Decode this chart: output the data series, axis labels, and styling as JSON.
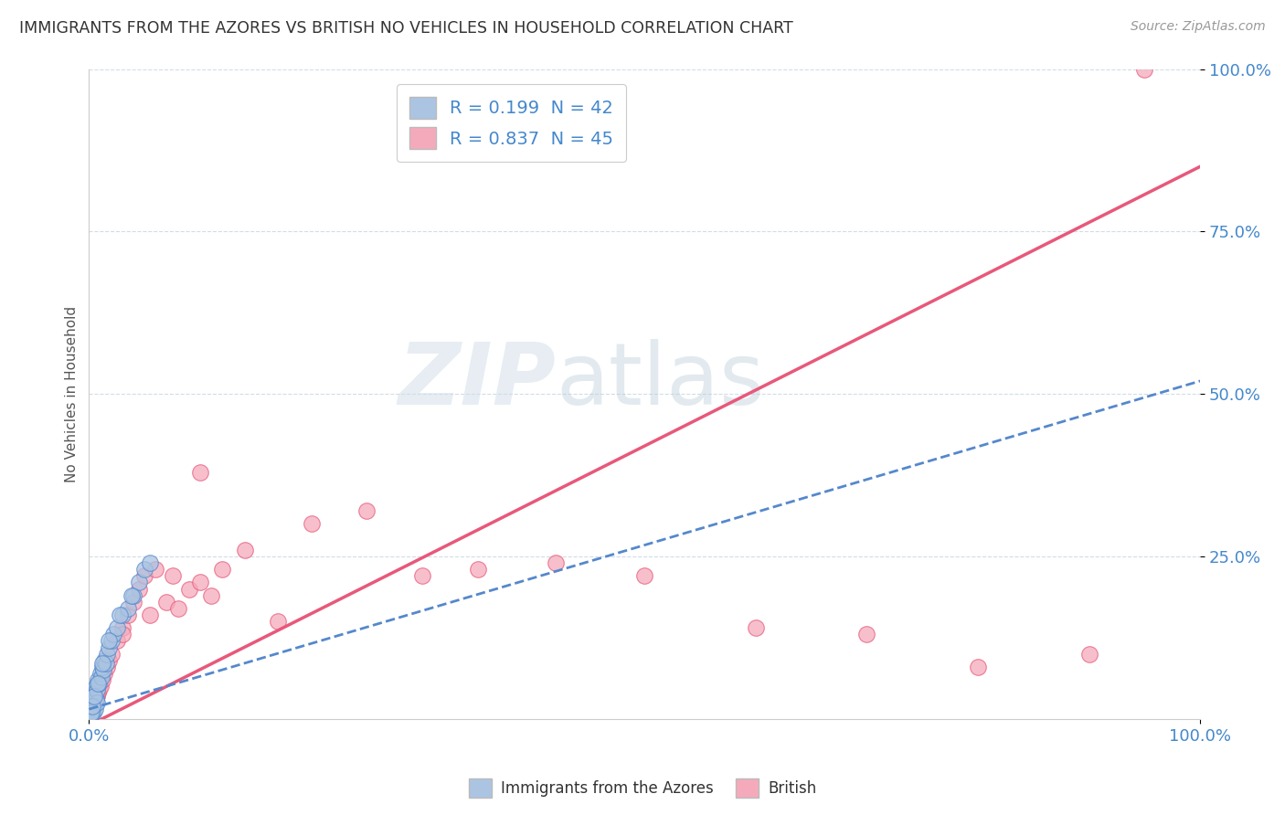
{
  "title": "IMMIGRANTS FROM THE AZORES VS BRITISH NO VEHICLES IN HOUSEHOLD CORRELATION CHART",
  "source": "Source: ZipAtlas.com",
  "ylabel": "No Vehicles in Household",
  "xlabel": "",
  "xlim": [
    0,
    100
  ],
  "ylim": [
    0,
    100
  ],
  "xtick_labels": [
    "0.0%",
    "100.0%"
  ],
  "ytick_values": [
    25,
    50,
    75,
    100
  ],
  "ytick_labels": [
    "25.0%",
    "50.0%",
    "75.0%",
    "100.0%"
  ],
  "legend_r1": "R = 0.199  N = 42",
  "legend_r2": "R = 0.837  N = 45",
  "blue_color": "#aac4e2",
  "pink_color": "#f5aabb",
  "blue_line_color": "#5588cc",
  "pink_line_color": "#e8587a",
  "title_color": "#333333",
  "axis_color": "#4488cc",
  "watermark_zip": "ZIP",
  "watermark_atlas": "atlas",
  "grid_color": "#d0dde8",
  "bg_color": "#ffffff",
  "azores_x": [
    0.1,
    0.15,
    0.2,
    0.25,
    0.3,
    0.35,
    0.4,
    0.45,
    0.5,
    0.55,
    0.6,
    0.65,
    0.7,
    0.75,
    0.8,
    0.9,
    1.0,
    1.1,
    1.2,
    1.3,
    1.4,
    1.5,
    1.6,
    1.8,
    2.0,
    2.2,
    2.5,
    3.0,
    3.5,
    4.0,
    4.5,
    5.0,
    0.1,
    0.2,
    0.3,
    0.5,
    0.8,
    1.2,
    1.8,
    2.8,
    3.8,
    5.5
  ],
  "azores_y": [
    1.0,
    2.0,
    1.5,
    3.0,
    2.5,
    1.0,
    3.5,
    2.0,
    4.0,
    1.5,
    5.0,
    3.0,
    4.5,
    2.5,
    6.0,
    5.5,
    7.0,
    6.5,
    8.0,
    7.5,
    9.0,
    8.5,
    10.0,
    11.0,
    12.0,
    13.0,
    14.0,
    16.0,
    17.0,
    19.0,
    21.0,
    23.0,
    0.5,
    1.0,
    2.0,
    3.5,
    5.5,
    8.5,
    12.0,
    16.0,
    19.0,
    24.0
  ],
  "british_x": [
    0.1,
    0.2,
    0.3,
    0.4,
    0.5,
    0.6,
    0.7,
    0.8,
    0.9,
    1.0,
    1.2,
    1.4,
    1.6,
    1.8,
    2.0,
    2.5,
    3.0,
    3.5,
    4.0,
    4.5,
    5.0,
    6.0,
    7.0,
    8.0,
    9.0,
    10.0,
    11.0,
    12.0,
    14.0,
    17.0,
    20.0,
    25.0,
    30.0,
    35.0,
    42.0,
    50.0,
    60.0,
    70.0,
    80.0,
    90.0,
    95.0,
    10.0,
    5.5,
    7.5,
    3.0
  ],
  "british_y": [
    0.5,
    1.0,
    1.5,
    2.0,
    2.5,
    3.0,
    3.5,
    4.0,
    4.5,
    5.0,
    6.0,
    7.0,
    8.0,
    9.0,
    10.0,
    12.0,
    14.0,
    16.0,
    18.0,
    20.0,
    22.0,
    23.0,
    18.0,
    17.0,
    20.0,
    21.0,
    19.0,
    23.0,
    26.0,
    15.0,
    30.0,
    32.0,
    22.0,
    23.0,
    24.0,
    22.0,
    14.0,
    13.0,
    8.0,
    10.0,
    100.0,
    38.0,
    16.0,
    22.0,
    13.0
  ],
  "blue_line_x": [
    0,
    100
  ],
  "blue_line_y": [
    1.5,
    52.0
  ],
  "pink_line_x": [
    0,
    100
  ],
  "pink_line_y": [
    -1.0,
    85.0
  ]
}
